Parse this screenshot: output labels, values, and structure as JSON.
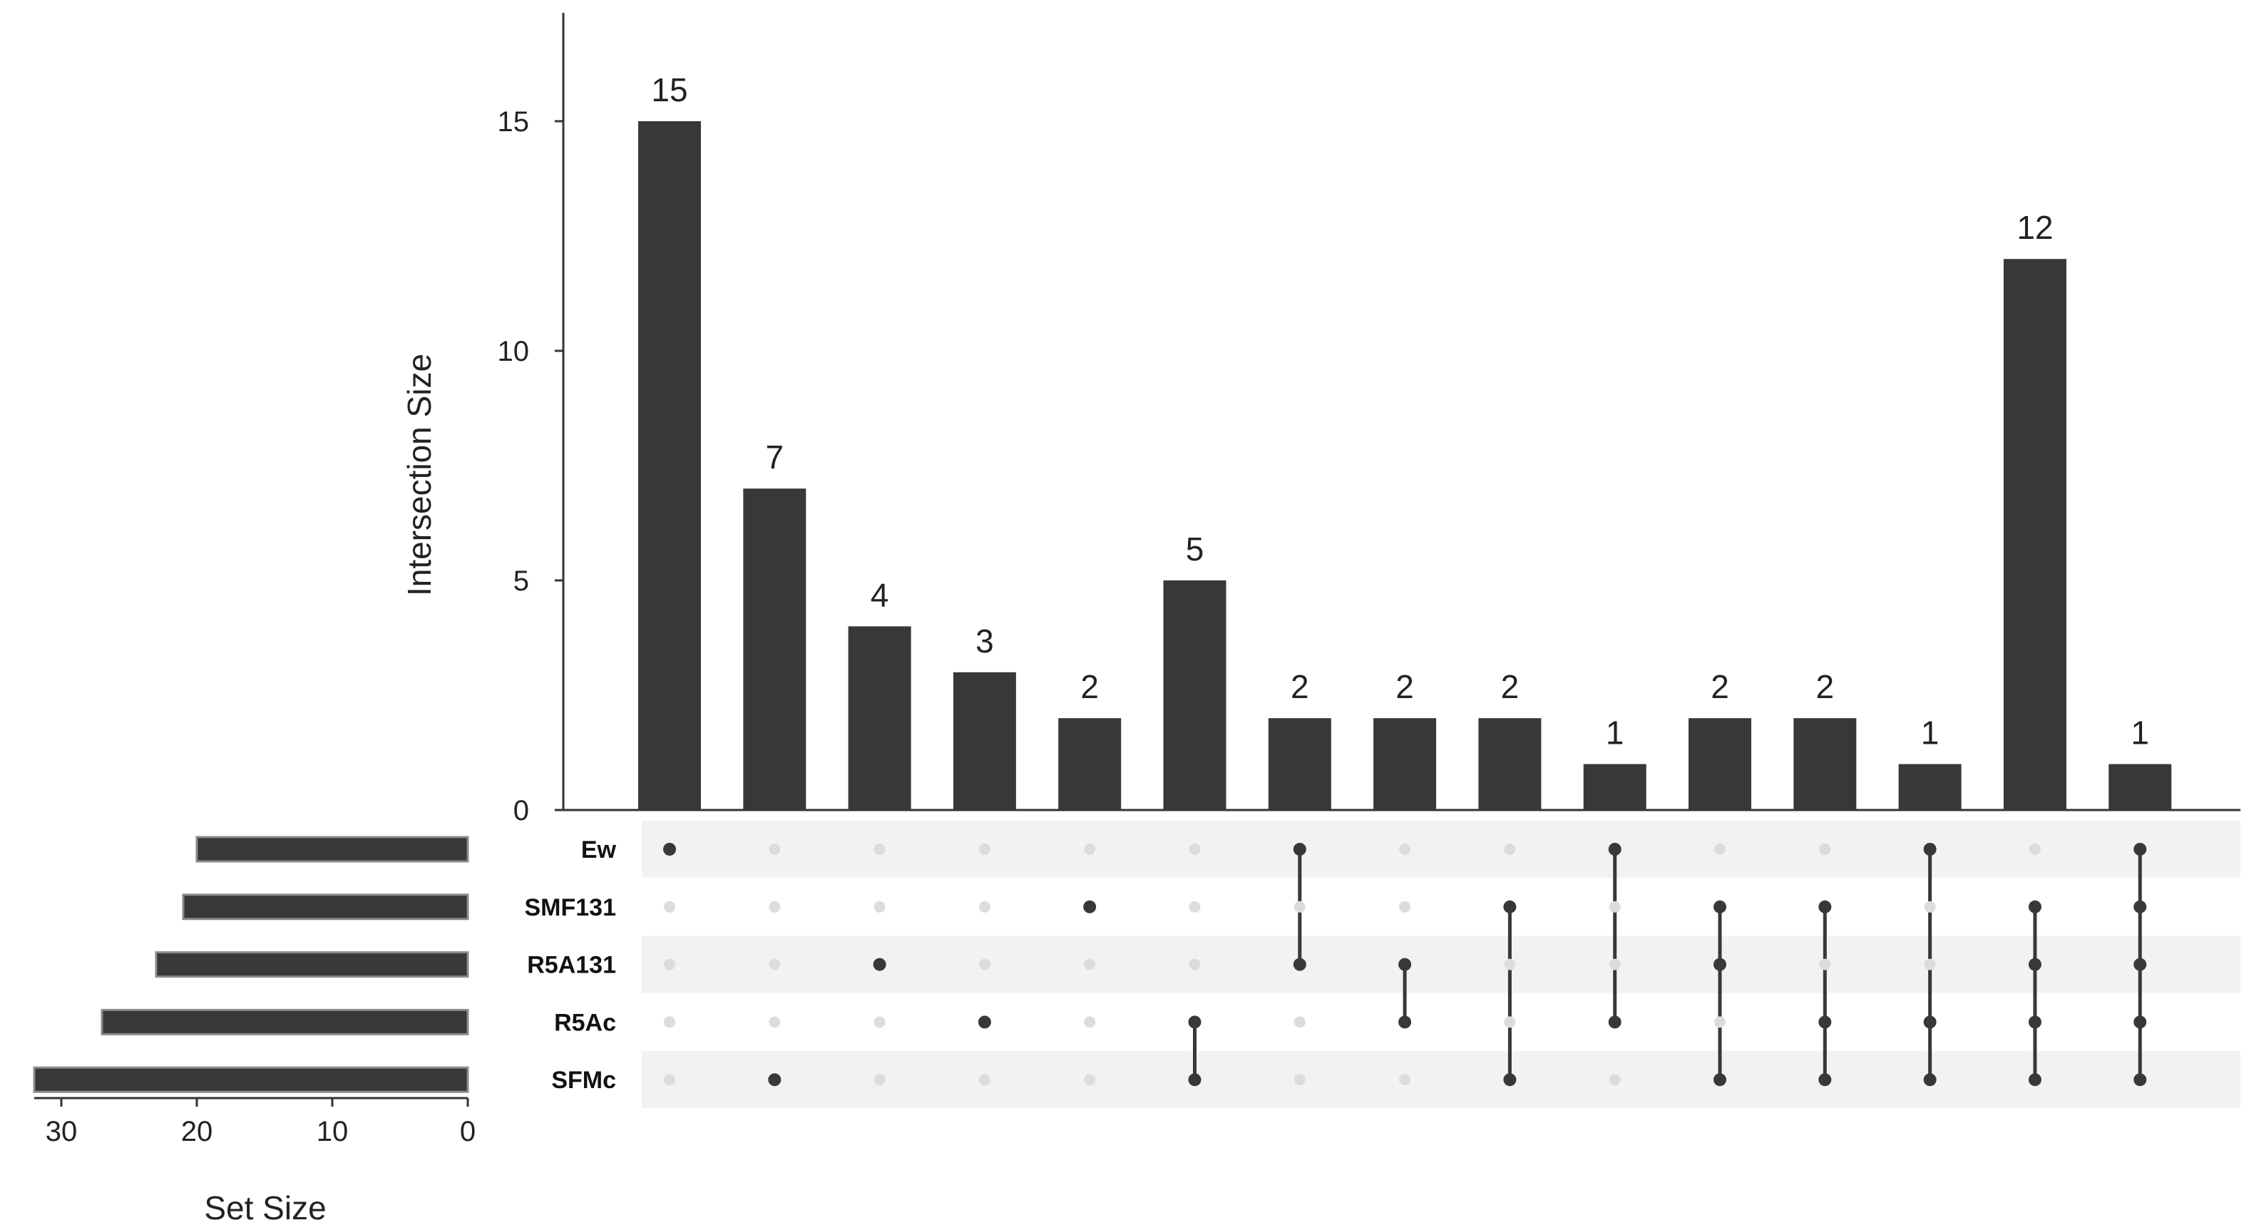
{
  "chart_data": {
    "type": "upset",
    "intersection_axis": {
      "label": "Intersection Size",
      "ticks": [
        "0",
        "5",
        "10",
        "15"
      ],
      "ylim": [
        0,
        17
      ]
    },
    "set_size_axis": {
      "label": "Set Size",
      "ticks": [
        "30",
        "20",
        "10",
        "0"
      ],
      "direction": "reversed"
    },
    "sets": [
      {
        "name": "Ew",
        "size": 20
      },
      {
        "name": "SMF131",
        "size": 21
      },
      {
        "name": "R5A131",
        "size": 23
      },
      {
        "name": "R5Ac",
        "size": 27
      },
      {
        "name": "SFMc",
        "size": 32
      }
    ],
    "intersections": [
      {
        "sets": [
          "Ew"
        ],
        "value": 15,
        "label": "15"
      },
      {
        "sets": [
          "SFMc"
        ],
        "value": 7,
        "label": "7"
      },
      {
        "sets": [
          "R5A131"
        ],
        "value": 4,
        "label": "4"
      },
      {
        "sets": [
          "R5Ac"
        ],
        "value": 3,
        "label": "3"
      },
      {
        "sets": [
          "SMF131"
        ],
        "value": 2,
        "label": "2"
      },
      {
        "sets": [
          "R5Ac",
          "SFMc"
        ],
        "value": 5,
        "label": "5"
      },
      {
        "sets": [
          "Ew",
          "R5A131"
        ],
        "value": 2,
        "label": "2"
      },
      {
        "sets": [
          "R5A131",
          "R5Ac"
        ],
        "value": 2,
        "label": "2"
      },
      {
        "sets": [
          "SMF131",
          "SFMc"
        ],
        "value": 2,
        "label": "2"
      },
      {
        "sets": [
          "Ew",
          "R5Ac"
        ],
        "value": 1,
        "label": "1"
      },
      {
        "sets": [
          "SMF131",
          "R5A131",
          "SFMc"
        ],
        "value": 2,
        "label": "2"
      },
      {
        "sets": [
          "SMF131",
          "R5Ac",
          "SFMc"
        ],
        "value": 2,
        "label": "2"
      },
      {
        "sets": [
          "Ew",
          "R5Ac",
          "SFMc"
        ],
        "value": 1,
        "label": "1"
      },
      {
        "sets": [
          "SMF131",
          "R5A131",
          "R5Ac",
          "SFMc"
        ],
        "value": 12,
        "label": "12"
      },
      {
        "sets": [
          "Ew",
          "SMF131",
          "R5A131",
          "R5Ac",
          "SFMc"
        ],
        "value": 1,
        "label": "1"
      }
    ],
    "colors": {
      "bar": "#383838",
      "dot_active": "#383838",
      "dot_inactive": "#dcdcdc",
      "matrix_stripe": "#f2f2f2",
      "axis": "#333333"
    }
  }
}
